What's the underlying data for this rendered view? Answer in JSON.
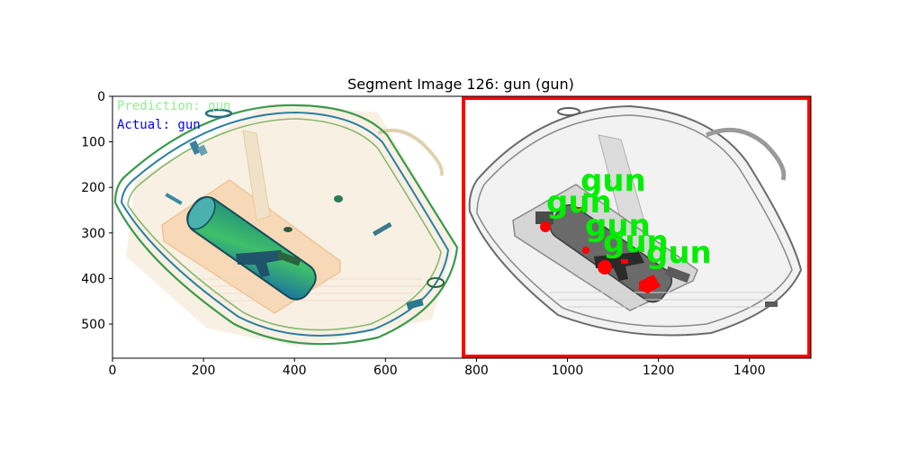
{
  "figure": {
    "title": "Segment Image 126: gun (gun)"
  },
  "axes": {
    "x_ticks": [
      "0",
      "200",
      "400",
      "600",
      "800",
      "1000",
      "1200",
      "1400"
    ],
    "y_ticks": [
      "0",
      "100",
      "200",
      "300",
      "400",
      "500"
    ]
  },
  "left_panel": {
    "prediction_text": "Prediction: gun",
    "actual_text": "Actual: gun",
    "prediction_color": "#90ee90",
    "actual_color": "#0000ff"
  },
  "right_panel": {
    "border_color": "#ff0000",
    "detection_label_color": "#00ee00",
    "detections": [
      "gun",
      "gun",
      "gun",
      "gun",
      "gun"
    ]
  }
}
